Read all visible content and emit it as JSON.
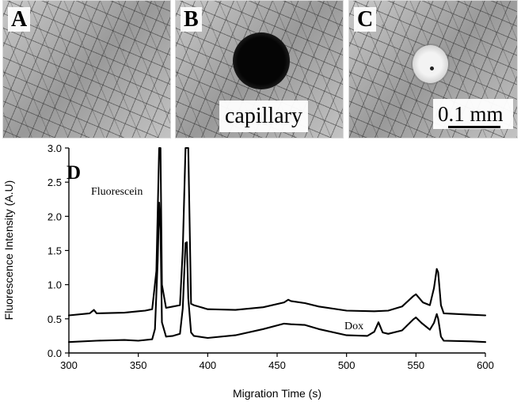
{
  "figure": {
    "panels": {
      "a": {
        "label": "A"
      },
      "b": {
        "label": "B",
        "inset_label": "capillary"
      },
      "c": {
        "label": "C",
        "scale_label": "0.1 mm"
      }
    }
  },
  "chart_data": {
    "type": "line",
    "panel_label": "D",
    "title": "",
    "xlabel": "Migration Time (s)",
    "ylabel": "Fluorescence Intensity (A.U)",
    "xlim": [
      300,
      600
    ],
    "ylim": [
      0.0,
      3.0
    ],
    "x_ticks": [
      300,
      350,
      400,
      450,
      500,
      550,
      600
    ],
    "y_ticks": [
      0.0,
      0.5,
      1.0,
      1.5,
      2.0,
      2.5,
      3.0
    ],
    "x_tick_labels": [
      "300",
      "350",
      "400",
      "450",
      "500",
      "550",
      "600"
    ],
    "y_tick_labels": [
      "0.0",
      "0.5",
      "1.0",
      "1.5",
      "2.0",
      "2.5",
      "3.0"
    ],
    "grid": false,
    "annotations": [
      {
        "text": "Fluorescein"
      },
      {
        "text": "Dox"
      }
    ],
    "series": [
      {
        "x": [
          300,
          315,
          318,
          320,
          340,
          350,
          355,
          360,
          363,
          365,
          366,
          367,
          370,
          375,
          380,
          382,
          384,
          386,
          388,
          390,
          400,
          420,
          440,
          455,
          458,
          460,
          470,
          480,
          500,
          520,
          530,
          540,
          548,
          550,
          555,
          560,
          563,
          565,
          566,
          568,
          570,
          590,
          600
        ],
        "y": [
          0.55,
          0.58,
          0.63,
          0.58,
          0.59,
          0.61,
          0.62,
          0.64,
          1.2,
          3.0,
          3.0,
          1.0,
          0.66,
          0.68,
          0.7,
          1.5,
          3.0,
          3.0,
          0.72,
          0.7,
          0.64,
          0.63,
          0.67,
          0.74,
          0.78,
          0.76,
          0.73,
          0.68,
          0.62,
          0.61,
          0.62,
          0.68,
          0.83,
          0.86,
          0.74,
          0.7,
          0.95,
          1.23,
          1.18,
          0.7,
          0.58,
          0.56,
          0.55
        ]
      },
      {
        "x": [
          300,
          320,
          340,
          350,
          360,
          362,
          364,
          365,
          366,
          367,
          370,
          375,
          380,
          382,
          384,
          385,
          386,
          388,
          390,
          400,
          420,
          440,
          455,
          460,
          470,
          480,
          500,
          515,
          520,
          523,
          526,
          530,
          540,
          548,
          550,
          554,
          560,
          563,
          565,
          566,
          568,
          570,
          590,
          600
        ],
        "y": [
          0.16,
          0.18,
          0.19,
          0.18,
          0.2,
          0.35,
          1.35,
          2.2,
          1.8,
          0.45,
          0.24,
          0.25,
          0.28,
          0.65,
          1.61,
          1.62,
          0.8,
          0.3,
          0.25,
          0.22,
          0.26,
          0.35,
          0.43,
          0.42,
          0.41,
          0.35,
          0.26,
          0.25,
          0.31,
          0.45,
          0.3,
          0.28,
          0.33,
          0.49,
          0.52,
          0.44,
          0.34,
          0.44,
          0.57,
          0.5,
          0.24,
          0.18,
          0.17,
          0.16
        ]
      }
    ]
  }
}
